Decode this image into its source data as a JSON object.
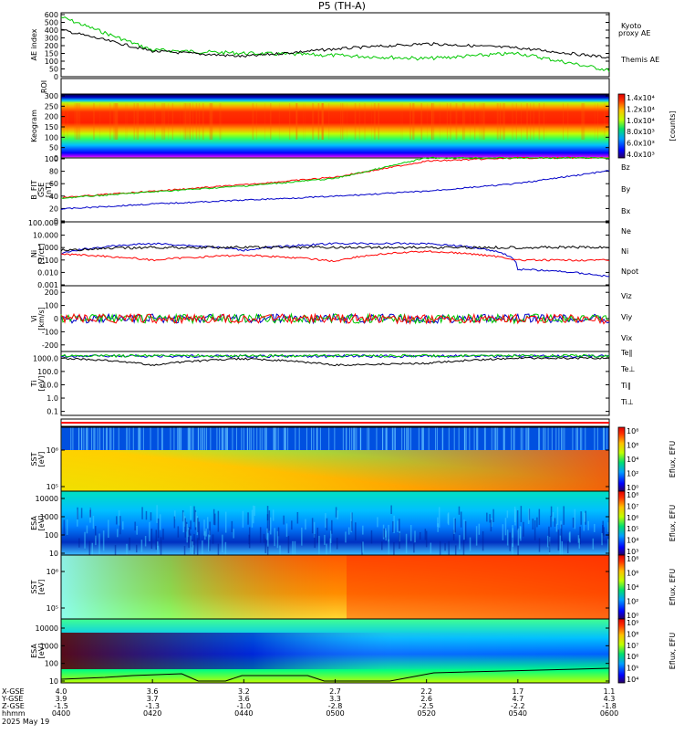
{
  "title": "P5 (TH-A)",
  "date_label": "2025 May 19",
  "colors": {
    "kyoto": "#00c800",
    "themis": "#000000",
    "red": "#ff0000",
    "green": "#00c800",
    "blue": "#0000c8"
  },
  "panels": {
    "ae": {
      "ylabel": "AE index",
      "ticks": [
        "600",
        "500",
        "400",
        "300",
        "200",
        "150",
        "100",
        "50",
        "0"
      ],
      "legend_kyoto_1": "Kyoto",
      "legend_kyoto_2": "proxy AE",
      "legend_themis": "Themis AE"
    },
    "roi": {
      "ylabel": "ROI"
    },
    "keogram": {
      "ylabel": "Keogram",
      "ticks": [
        "300",
        "250",
        "200",
        "150",
        "100",
        "50",
        "0"
      ],
      "cbar_ticks": [
        "1.4x10⁴",
        "1.2x10⁴",
        "1.0x10⁴",
        "8.0x10³",
        "6.0x10³",
        "4.0x10³"
      ],
      "cbar_label": "[counts]"
    },
    "bfield": {
      "ylabel": "B_FIT",
      "ylabel2": "GSE",
      "ylabel3": "[nT]",
      "ticks": [
        "100",
        "80",
        "60",
        "40",
        "20",
        "0"
      ],
      "leg": [
        "Bz",
        "By",
        "Bx"
      ]
    },
    "density": {
      "ylabel": "Ni",
      "ylabel2": "[1/cc]",
      "ticks": [
        "100.000",
        "10.000",
        "1.000",
        "0.100",
        "0.010",
        "0.001"
      ],
      "leg": [
        "Ne",
        "Ni",
        "Npot"
      ]
    },
    "velocity": {
      "ylabel": "Vi",
      "ylabel2": "[km/s]",
      "ticks": [
        "200",
        "100",
        "0",
        "-100",
        "-200"
      ],
      "leg": [
        "Viz",
        "Viy",
        "Vix"
      ]
    },
    "temp": {
      "ylabel": "Ti",
      "ylabel2": "[eV]",
      "ticks": [
        "1000.0",
        "100.0",
        "10.0",
        "1.0",
        "0.1"
      ],
      "leg": [
        "Te∥",
        "Te⊥",
        "Ti∥",
        "Ti⊥"
      ]
    },
    "sst_i": {
      "ylabel": "SST",
      "ylabel2": "[eV]",
      "ticks": [
        "10⁶",
        "10⁵"
      ],
      "cbar_ticks": [
        "10⁸",
        "10⁶",
        "10⁴",
        "10²",
        "10⁰"
      ],
      "cbar_label": "Eflux, EFU"
    },
    "esa_i": {
      "ylabel": "ESA",
      "ylabel2": "[eV]",
      "ticks": [
        "10000",
        "1000",
        "100",
        "10"
      ],
      "cbar_ticks": [
        "10⁸",
        "10⁷",
        "10⁶",
        "10⁵",
        "10⁴",
        "10³"
      ],
      "cbar_label": "Eflux, EFU"
    },
    "sst_e": {
      "ylabel": "SST",
      "ylabel2": "[eV]",
      "ticks": [
        "10⁶",
        "10⁵"
      ],
      "cbar_ticks": [
        "10⁸",
        "10⁶",
        "10⁴",
        "10²",
        "10⁰"
      ],
      "cbar_label": "Eflux, EFU"
    },
    "esa_e": {
      "ylabel": "ESA",
      "ylabel2": "[eV]",
      "ticks": [
        "10000",
        "1000",
        "100",
        "10"
      ],
      "cbar_ticks": [
        "10⁹",
        "10⁸",
        "10⁷",
        "10⁶",
        "10⁵",
        "10⁴"
      ],
      "cbar_label": "Eflux, EFU"
    }
  },
  "x_axis": {
    "row_labels": [
      "X-GSE",
      "Y-GSE",
      "Z-GSE",
      "hhmm"
    ],
    "columns": [
      {
        "x": "4.0",
        "y": "3.9",
        "z": "-1.5",
        "t": "0400"
      },
      {
        "x": "3.6",
        "y": "3.7",
        "z": "-1.3",
        "t": "0420"
      },
      {
        "x": "3.2",
        "y": "3.6",
        "z": "-1.0",
        "t": "0440"
      },
      {
        "x": "2.7",
        "y": "3.3",
        "z": "-2.8",
        "t": "0500"
      },
      {
        "x": "2.2",
        "y": "2.6",
        "z": "-2.5",
        "t": "0520"
      },
      {
        "x": "1.7",
        "y": "4.7",
        "z": "-2.2",
        "t": "0540"
      },
      {
        "x": "1.1",
        "y": "4.3",
        "z": "-1.8",
        "t": "0600"
      }
    ]
  },
  "chart_data": [
    {
      "type": "line",
      "title": "P5 (TH-A)",
      "ylabel": "AE index",
      "ylim": [
        0,
        600
      ],
      "x": [
        "0400",
        "0420",
        "0440",
        "0500",
        "0520",
        "0540",
        "0600"
      ],
      "series": [
        {
          "name": "Kyoto proxy AE",
          "values": [
            560,
            250,
            220,
            200,
            170,
            220,
            60
          ]
        },
        {
          "name": "Themis AE",
          "values": [
            440,
            240,
            190,
            260,
            310,
            270,
            180
          ]
        }
      ]
    },
    {
      "type": "heatmap",
      "ylabel": "Keogram",
      "ylim": [
        0,
        300
      ]
    },
    {
      "type": "line",
      "ylabel": "B_FIT GSE [nT]",
      "ylim": [
        0,
        100
      ],
      "x": [
        "0400",
        "0420",
        "0440",
        "0500",
        "0520",
        "0540",
        "0600"
      ],
      "series": [
        {
          "name": "Bz",
          "values": [
            38,
            48,
            58,
            70,
            95,
            100,
            100
          ]
        },
        {
          "name": "By",
          "values": [
            37,
            47,
            56,
            68,
            100,
            100,
            100
          ]
        },
        {
          "name": "Bx",
          "values": [
            20,
            28,
            34,
            40,
            48,
            60,
            80
          ]
        }
      ]
    },
    {
      "type": "line",
      "ylabel": "Ni [1/cc]",
      "x": [
        "0400",
        "0420",
        "0440",
        "0500",
        "0520",
        "0540",
        "0600"
      ],
      "series": [
        {
          "name": "Ne",
          "values": [
            0.3,
            0.1,
            0.25,
            0.08,
            0.5,
            0.1,
            0.1
          ]
        },
        {
          "name": "Ni",
          "values": [
            0.6,
            1,
            1,
            1,
            1,
            1,
            1
          ]
        },
        {
          "name": "Npot",
          "values": [
            0.3,
            2,
            0.6,
            2,
            2,
            0.02,
            0.005
          ]
        }
      ]
    },
    {
      "type": "line",
      "ylabel": "Vi [km/s]",
      "ylim": [
        -250,
        250
      ],
      "x": [
        "0400",
        "0420",
        "0440",
        "0500",
        "0520",
        "0540",
        "0600"
      ],
      "series": [
        {
          "name": "Viz",
          "values": [
            0,
            0,
            0,
            0,
            0,
            0,
            -5
          ]
        },
        {
          "name": "Viy",
          "values": [
            5,
            0,
            0,
            0,
            0,
            0,
            0
          ]
        },
        {
          "name": "Vix",
          "values": [
            0,
            0,
            0,
            0,
            0,
            0,
            0
          ]
        }
      ]
    },
    {
      "type": "line",
      "ylabel": "Ti [eV]",
      "x": [
        "0400",
        "0420",
        "0440",
        "0500",
        "0520",
        "0540",
        "0600"
      ],
      "series": [
        {
          "name": "Te∥",
          "values": [
            1000,
            300,
            900,
            300,
            400,
            1000,
            1000
          ]
        },
        {
          "name": "Ti∥",
          "values": [
            1500,
            1500,
            1500,
            1500,
            1500,
            1500,
            1500
          ]
        },
        {
          "name": "Ti⊥",
          "values": [
            1400,
            1400,
            1400,
            1400,
            1400,
            1400,
            1400
          ]
        }
      ]
    },
    {
      "type": "heatmap",
      "ylabel": "SST [eV]"
    },
    {
      "type": "heatmap",
      "ylabel": "ESA [eV]",
      "ylim": [
        10,
        10000
      ]
    },
    {
      "type": "heatmap",
      "ylabel": "SST [eV]"
    },
    {
      "type": "heatmap",
      "ylabel": "ESA [eV]",
      "ylim": [
        10,
        10000
      ]
    }
  ]
}
